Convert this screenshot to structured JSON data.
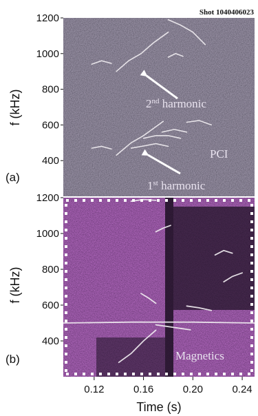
{
  "figure": {
    "shot_label": "Shot 1040406023",
    "panel_a": {
      "label": "(a)",
      "diagnostic": "PCI",
      "harmonic_2_base": "2",
      "harmonic_2_sup": "nd",
      "harmonic_2_word": " harmonic",
      "harmonic_1_base": "1",
      "harmonic_1_sup": "st",
      "harmonic_1_word": " harmonic"
    },
    "panel_b": {
      "label": "(b)",
      "diagnostic": "Magnetics"
    },
    "colors": {
      "panel_a_bg": "#3f3b49",
      "panel_b_bg": "#5c2f66",
      "streak": "#f2eef2"
    },
    "icons": [
      "arrow-icon"
    ]
  },
  "chart_data": [
    {
      "type": "heatmap",
      "title": "",
      "xlabel": "",
      "ylabel": "f (kHz)",
      "ylim": [
        200,
        1200
      ],
      "y_ticks": [
        400,
        600,
        800,
        1000,
        1200
      ],
      "y_tick_labels": [
        "400",
        "600",
        "800",
        "1000",
        "1200"
      ],
      "xlim": [
        0.095,
        0.25
      ],
      "x_ticks": [],
      "annotations": [
        "2nd harmonic",
        "1st harmonic",
        "PCI"
      ],
      "features": [
        {
          "x": [
            0.138,
            0.15,
            0.16,
            0.168,
            0.176
          ],
          "y": [
            430,
            500,
            540,
            580,
            620
          ]
        },
        {
          "x": [
            0.138,
            0.148,
            0.158,
            0.168,
            0.18
          ],
          "y": [
            900,
            960,
            1000,
            1060,
            1120
          ]
        },
        {
          "x": [
            0.18,
            0.19,
            0.2,
            0.21
          ],
          "y": [
            1190,
            1160,
            1120,
            1050
          ]
        },
        {
          "x": [
            0.175,
            0.185,
            0.195
          ],
          "y": [
            560,
            575,
            560
          ]
        },
        {
          "x": [
            0.195,
            0.205,
            0.215
          ],
          "y": [
            615,
            625,
            600
          ]
        },
        {
          "x": [
            0.16,
            0.17,
            0.18,
            0.19
          ],
          "y": [
            525,
            540,
            540,
            525
          ]
        },
        {
          "x": [
            0.15,
            0.16,
            0.17,
            0.18
          ],
          "y": [
            470,
            482,
            495,
            480
          ]
        },
        {
          "x": [
            0.118,
            0.126,
            0.134
          ],
          "y": [
            470,
            480,
            465
          ]
        },
        {
          "x": [
            0.118,
            0.126,
            0.134
          ],
          "y": [
            940,
            960,
            945
          ]
        },
        {
          "x": [
            0.18,
            0.186,
            0.192
          ],
          "y": [
            980,
            1000,
            985
          ]
        }
      ]
    },
    {
      "type": "heatmap",
      "title": "",
      "xlabel": "Time (s)",
      "ylabel": "f (kHz)",
      "xlim": [
        0.095,
        0.25
      ],
      "x_ticks": [
        0.12,
        0.16,
        0.2,
        0.24
      ],
      "x_tick_labels": [
        "0.12",
        "0.16",
        "0.20",
        "0.24"
      ],
      "ylim": [
        200,
        1200
      ],
      "y_ticks": [
        400,
        600,
        800,
        1000,
        1200
      ],
      "y_tick_labels": [
        "400",
        "600",
        "800",
        "1000",
        "1200"
      ],
      "annotations": [
        "Magnetics"
      ],
      "features": [
        {
          "x": [
            0.095,
            0.15,
            0.2,
            0.25
          ],
          "y": [
            500,
            505,
            505,
            500
          ]
        },
        {
          "x": [
            0.14,
            0.15,
            0.16,
            0.17
          ],
          "y": [
            280,
            330,
            400,
            460
          ]
        },
        {
          "x": [
            0.17,
            0.18,
            0.19,
            0.198
          ],
          "y": [
            490,
            480,
            470,
            462
          ]
        },
        {
          "x": [
            0.158,
            0.164,
            0.17
          ],
          "y": [
            665,
            640,
            610
          ]
        },
        {
          "x": [
            0.195,
            0.205,
            0.215
          ],
          "y": [
            595,
            585,
            570
          ]
        },
        {
          "x": [
            0.218,
            0.225,
            0.232
          ],
          "y": [
            880,
            905,
            890
          ]
        },
        {
          "x": [
            0.225,
            0.232,
            0.24
          ],
          "y": [
            730,
            760,
            780
          ]
        },
        {
          "x": [
            0.17,
            0.176,
            0.182
          ],
          "y": [
            1010,
            1030,
            1045
          ]
        },
        {
          "x": [
            0.15,
            0.16,
            0.17
          ],
          "y": [
            1180,
            1190,
            1185
          ]
        }
      ]
    }
  ]
}
